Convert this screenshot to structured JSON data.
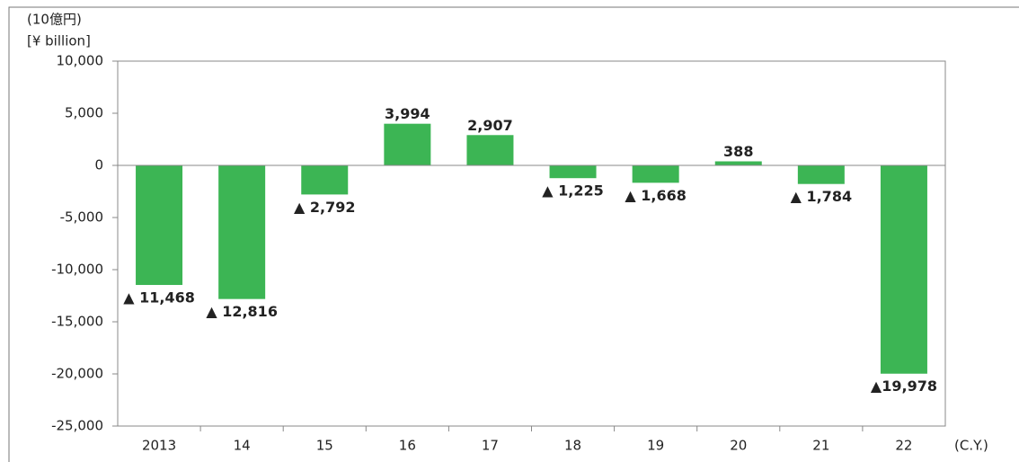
{
  "chart_data": {
    "type": "bar",
    "y_label_lines": [
      "(10億円)",
      "[¥ billion]"
    ],
    "x_label": "(C.Y.)",
    "categories": [
      "2013",
      "14",
      "15",
      "16",
      "17",
      "18",
      "19",
      "20",
      "21",
      "22"
    ],
    "values": [
      -11468,
      -12816,
      -2792,
      3994,
      2907,
      -1225,
      -1668,
      388,
      -1784,
      -19978
    ],
    "value_labels": [
      "▲ 11,468",
      "▲ 12,816",
      "▲ 2,792",
      "3,994",
      "2,907",
      "▲ 1,225",
      "▲ 1,668",
      "388",
      "▲ 1,784",
      "▲19,978"
    ],
    "color": "#3cb554",
    "ylim": [
      -25000,
      10000
    ],
    "yticks": [
      {
        "value": 10000,
        "label": "10,000"
      },
      {
        "value": 5000,
        "label": "5,000"
      },
      0,
      {
        "value": -5000,
        "label": "-5,000"
      },
      {
        "value": -10000,
        "label": "-10,000"
      },
      {
        "value": -15000,
        "label": "-15,000"
      },
      {
        "value": -20000,
        "label": "-20,000"
      },
      {
        "value": -25000,
        "label": "-25,000"
      }
    ],
    "grid": false
  }
}
